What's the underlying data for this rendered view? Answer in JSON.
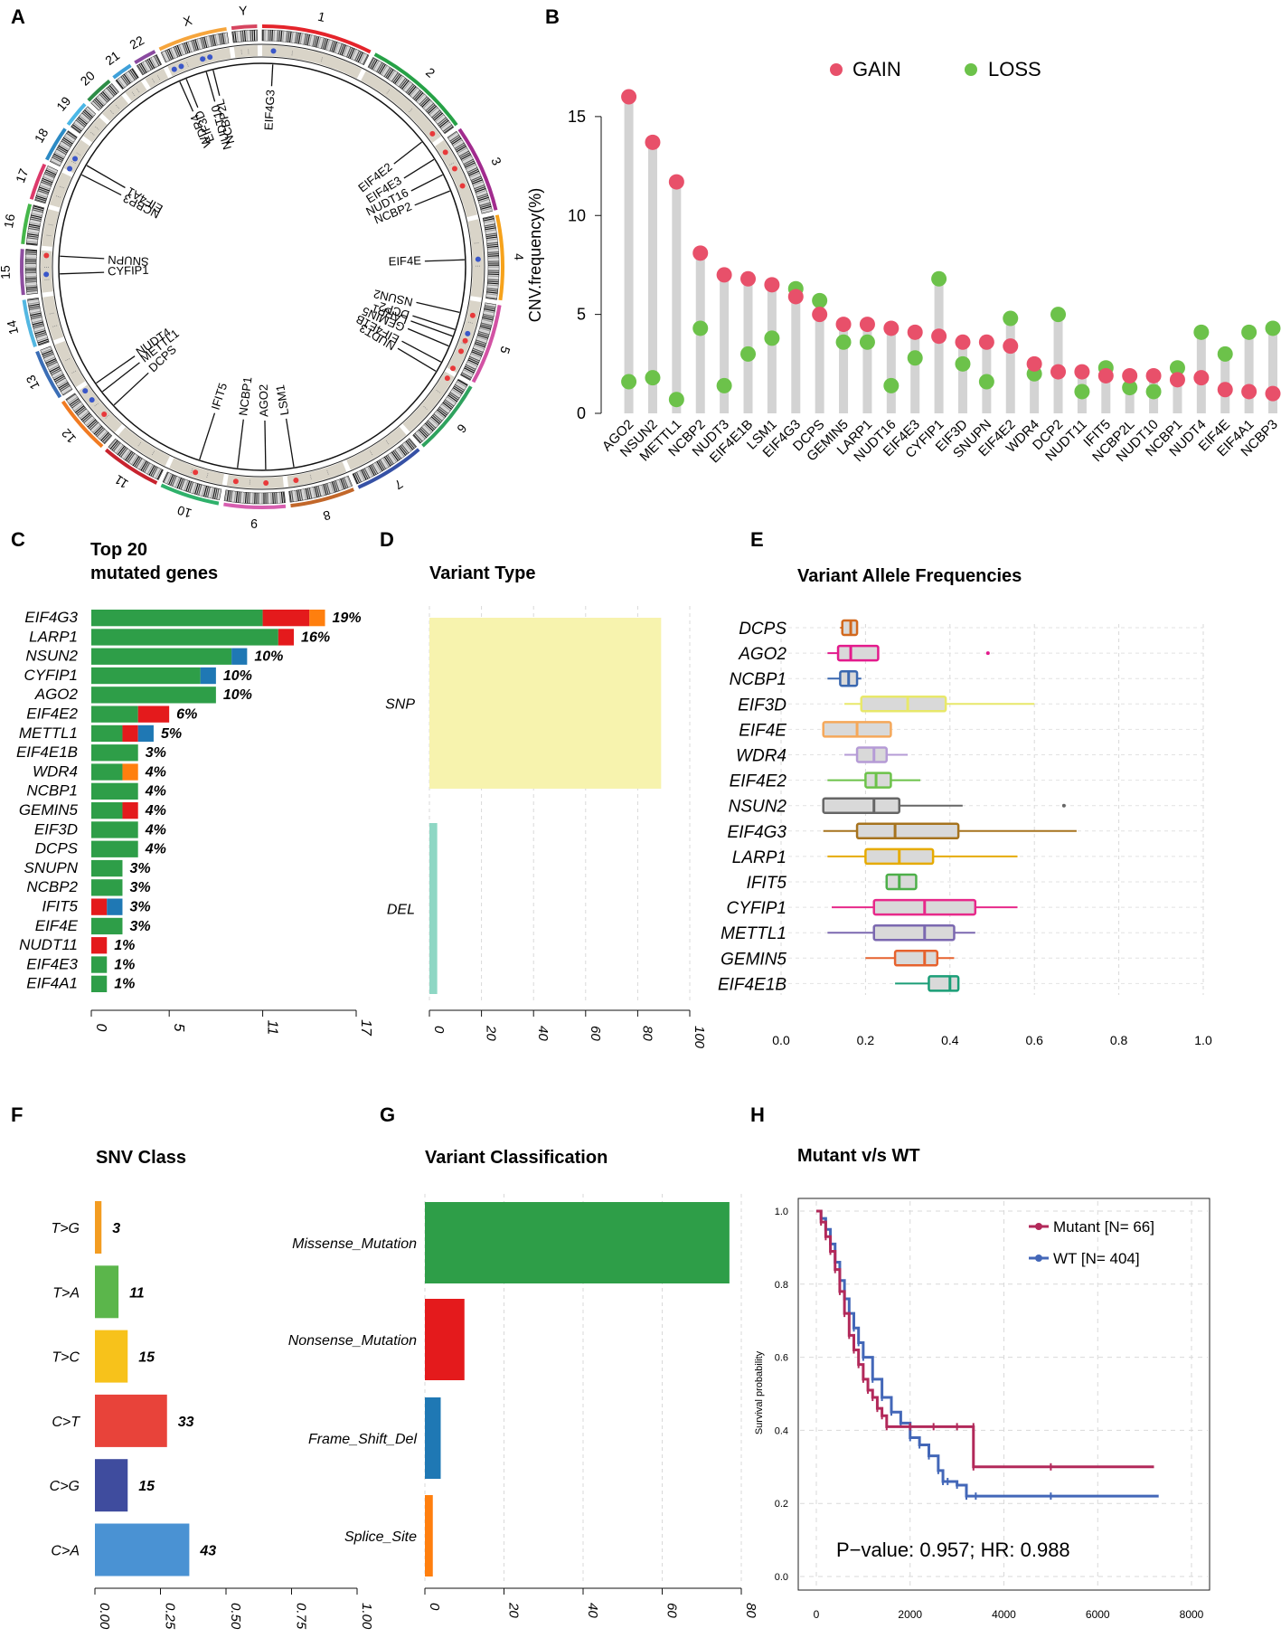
{
  "panels": {
    "A": {
      "letter": "A"
    },
    "B": {
      "letter": "B"
    },
    "C": {
      "letter": "C",
      "title_line1": "Top 20",
      "title_line2": "mutated genes"
    },
    "D": {
      "letter": "D",
      "title": "Variant Type"
    },
    "E": {
      "letter": "E",
      "title": "Variant Allele Frequencies"
    },
    "F": {
      "letter": "F",
      "title": "SNV Class"
    },
    "G": {
      "letter": "G",
      "title": "Variant Classification"
    },
    "H": {
      "letter": "H",
      "title": "Mutant v/s WT"
    }
  },
  "colors": {
    "gain": "#E8506A",
    "loss": "#6CC24A",
    "stick": "#D3D3D3",
    "missense": "#2E9E48",
    "nonsense": "#E41A1C",
    "frameshift": "#1F78B4",
    "splice": "#FF7F0E",
    "snp": "#F7F3AE",
    "del": "#8ED7C4",
    "mutant": "#B2295A",
    "wt": "#4367B8"
  },
  "chart_data": [
    {
      "panel": "A",
      "type": "circos",
      "chromosomes": [
        "1",
        "2",
        "3",
        "4",
        "5",
        "6",
        "7",
        "8",
        "9",
        "10",
        "11",
        "12",
        "13",
        "14",
        "15",
        "16",
        "17",
        "18",
        "19",
        "20",
        "21",
        "22",
        "X",
        "Y"
      ],
      "chromosome_colors": [
        "#E4242B",
        "#26A146",
        "#A12B8E",
        "#F6A21B",
        "#D252A4",
        "#2FA25E",
        "#3651A5",
        "#C2672A",
        "#D75EB0",
        "#2FB16B",
        "#C8232E",
        "#F17B22",
        "#3B6EB6",
        "#53B7E1",
        "#8E4EA0",
        "#45B64A",
        "#DC3A6B",
        "#2C8AC4",
        "#4BB7E5",
        "#2E8D47",
        "#3FA0D9",
        "#8A4AA0",
        "#F6A53C",
        "#D6455F"
      ],
      "genes": [
        {
          "name": "EIF4G3",
          "dot": "blue"
        },
        {
          "name": "NCBP2L",
          "dot": "blue"
        },
        {
          "name": "NUDT10",
          "dot": "blue"
        },
        {
          "name": "EIF3D",
          "dot": "blue"
        },
        {
          "name": "WDR4",
          "dot": "blue"
        },
        {
          "name": "EIF4E2",
          "dot": "red"
        },
        {
          "name": "EIF4E3",
          "dot": "red"
        },
        {
          "name": "NUDT16",
          "dot": "red"
        },
        {
          "name": "NCBP2",
          "dot": "red"
        },
        {
          "name": "EIF4E",
          "dot": "blue"
        },
        {
          "name": "NSUN2",
          "dot": "red"
        },
        {
          "name": "DCP2",
          "dot": "blue"
        },
        {
          "name": "LARP1",
          "dot": "red"
        },
        {
          "name": "GEMIN5",
          "dot": "red"
        },
        {
          "name": "EIF4E1B",
          "dot": "red"
        },
        {
          "name": "NUDT3",
          "dot": "red"
        },
        {
          "name": "LSM1",
          "dot": "red"
        },
        {
          "name": "AGO2",
          "dot": "red"
        },
        {
          "name": "NCBP1",
          "dot": "red"
        },
        {
          "name": "IFIT5",
          "dot": "red"
        },
        {
          "name": "DCPS",
          "dot": "red"
        },
        {
          "name": "METTL1",
          "dot": "blue"
        },
        {
          "name": "NUDT4",
          "dot": "blue"
        },
        {
          "name": "CYFIP1",
          "dot": "blue"
        },
        {
          "name": "SNUPN",
          "dot": "red"
        },
        {
          "name": "NCBP3",
          "dot": "blue"
        },
        {
          "name": "EIF4A1",
          "dot": "blue"
        }
      ]
    },
    {
      "panel": "B",
      "type": "lollipop",
      "ylabel": "CNV.frequency(%)",
      "ylim": [
        0,
        16
      ],
      "yticks": [
        0,
        5,
        10,
        15
      ],
      "legend": [
        "GAIN",
        "LOSS"
      ],
      "categories": [
        "AGO2",
        "NSUN2",
        "METTL1",
        "NCBP2",
        "NUDT3",
        "EIF4E1B",
        "LSM1",
        "EIF4G3",
        "DCPS",
        "GEMIN5",
        "LARP1",
        "NUDT16",
        "EIF4E3",
        "CYFIP1",
        "EIF3D",
        "SNUPN",
        "EIF4E2",
        "WDR4",
        "DCP2",
        "NUDT11",
        "IFIT5",
        "NCBP2L",
        "NUDT10",
        "NCBP1",
        "NUDT4",
        "EIF4E",
        "EIF4A1",
        "NCBP3"
      ],
      "series": [
        {
          "name": "GAIN",
          "values": [
            16.0,
            13.7,
            11.7,
            8.1,
            7.0,
            6.8,
            6.5,
            5.9,
            5.0,
            4.5,
            4.5,
            4.3,
            4.1,
            3.9,
            3.6,
            3.6,
            3.4,
            2.5,
            2.1,
            2.1,
            1.9,
            1.9,
            1.9,
            1.7,
            1.8,
            1.2,
            1.1,
            1.0
          ]
        },
        {
          "name": "LOSS",
          "values": [
            1.6,
            1.8,
            0.7,
            4.3,
            1.4,
            3.0,
            3.8,
            6.3,
            5.7,
            3.6,
            3.6,
            1.4,
            2.8,
            6.8,
            2.5,
            1.6,
            4.8,
            2.0,
            5.0,
            1.1,
            2.3,
            1.3,
            1.1,
            2.3,
            4.1,
            3.0,
            4.1,
            4.3
          ]
        }
      ]
    },
    {
      "panel": "C",
      "type": "bar",
      "orientation": "horizontal-stacked",
      "title": "Top 20 mutated genes",
      "xlim": [
        0,
        17
      ],
      "xticks": [
        0,
        5,
        11,
        17
      ],
      "categories": [
        "EIF4G3",
        "LARP1",
        "NSUN2",
        "CYFIP1",
        "AGO2",
        "EIF4E2",
        "METTL1",
        "EIF4E1B",
        "WDR4",
        "NCBP1",
        "GEMIN5",
        "EIF3D",
        "DCPS",
        "SNUPN",
        "NCBP2",
        "IFIT5",
        "EIF4E",
        "NUDT11",
        "EIF4E3",
        "EIF4A1"
      ],
      "labels": [
        "19%",
        "16%",
        "10%",
        "10%",
        "10%",
        "6%",
        "5%",
        "3%",
        "4%",
        "4%",
        "4%",
        "4%",
        "4%",
        "3%",
        "3%",
        "3%",
        "3%",
        "1%",
        "1%",
        "1%"
      ],
      "series": [
        {
          "name": "Missense_Mutation",
          "values": [
            11,
            12,
            9,
            7,
            8,
            3,
            2,
            3,
            2,
            3,
            2,
            3,
            3,
            2,
            2,
            0,
            2,
            0,
            1,
            1
          ]
        },
        {
          "name": "Nonsense_Mutation",
          "values": [
            3,
            1,
            0,
            0,
            0,
            2,
            1,
            0,
            0,
            0,
            1,
            0,
            0,
            0,
            0,
            1,
            0,
            1,
            0,
            0
          ]
        },
        {
          "name": "Frame_Shift_Del",
          "values": [
            0,
            0,
            1,
            1,
            0,
            0,
            1,
            0,
            0,
            0,
            0,
            0,
            0,
            0,
            0,
            1,
            0,
            0,
            0,
            0
          ]
        },
        {
          "name": "Splice_Site",
          "values": [
            1,
            0,
            0,
            0,
            0,
            0,
            0,
            0,
            1,
            0,
            0,
            0,
            0,
            0,
            0,
            0,
            0,
            0,
            0,
            0
          ]
        }
      ]
    },
    {
      "panel": "D",
      "type": "bar",
      "orientation": "horizontal",
      "title": "Variant Type",
      "categories": [
        "SNP",
        "DEL"
      ],
      "values": [
        89,
        3
      ],
      "xlim": [
        0,
        100
      ],
      "xticks": [
        0,
        20,
        40,
        60,
        80,
        100
      ]
    },
    {
      "panel": "E",
      "type": "box",
      "title": "Variant Allele Frequencies",
      "xlim": [
        0,
        1
      ],
      "xticks": [
        "0.0",
        "0.2",
        "0.4",
        "0.6",
        "0.8",
        "1.0"
      ],
      "categories": [
        "DCPS",
        "AGO2",
        "NCBP1",
        "EIF3D",
        "EIF4E",
        "WDR4",
        "EIF4E2",
        "NSUN2",
        "EIF4G3",
        "LARP1",
        "IFIT5",
        "CYFIP1",
        "METTL1",
        "GEMIN5",
        "EIF4E1B"
      ],
      "boxes": [
        {
          "min": 0.14,
          "q1": 0.145,
          "med": 0.165,
          "q3": 0.18,
          "max": 0.18,
          "color": "#D2691E",
          "out": []
        },
        {
          "min": 0.11,
          "q1": 0.135,
          "med": 0.165,
          "q3": 0.23,
          "max": 0.23,
          "color": "#E31A8C",
          "out": [
            0.49
          ]
        },
        {
          "min": 0.11,
          "q1": 0.14,
          "med": 0.16,
          "q3": 0.18,
          "max": 0.19,
          "color": "#3A68B0",
          "out": []
        },
        {
          "min": 0.15,
          "q1": 0.19,
          "med": 0.3,
          "q3": 0.39,
          "max": 0.6,
          "color": "#E8E86A",
          "out": []
        },
        {
          "min": 0.1,
          "q1": 0.1,
          "med": 0.18,
          "q3": 0.26,
          "max": 0.26,
          "color": "#F5A85A",
          "out": []
        },
        {
          "min": 0.15,
          "q1": 0.18,
          "med": 0.22,
          "q3": 0.25,
          "max": 0.3,
          "color": "#B59BD6",
          "out": []
        },
        {
          "min": 0.11,
          "q1": 0.2,
          "med": 0.225,
          "q3": 0.26,
          "max": 0.33,
          "color": "#6CC24A",
          "out": []
        },
        {
          "min": 0.1,
          "q1": 0.1,
          "med": 0.22,
          "q3": 0.28,
          "max": 0.43,
          "color": "#666666",
          "out": [
            0.67
          ]
        },
        {
          "min": 0.1,
          "q1": 0.18,
          "med": 0.27,
          "q3": 0.42,
          "max": 0.7,
          "color": "#A6731E",
          "out": []
        },
        {
          "min": 0.11,
          "q1": 0.2,
          "med": 0.28,
          "q3": 0.36,
          "max": 0.56,
          "color": "#E6AB02",
          "out": []
        },
        {
          "min": 0.25,
          "q1": 0.25,
          "med": 0.28,
          "q3": 0.32,
          "max": 0.32,
          "color": "#4DAF4A",
          "out": []
        },
        {
          "min": 0.12,
          "q1": 0.22,
          "med": 0.34,
          "q3": 0.46,
          "max": 0.56,
          "color": "#E7298A",
          "out": []
        },
        {
          "min": 0.11,
          "q1": 0.22,
          "med": 0.34,
          "q3": 0.41,
          "max": 0.46,
          "color": "#7B68B0",
          "out": []
        },
        {
          "min": 0.2,
          "q1": 0.27,
          "med": 0.34,
          "q3": 0.37,
          "max": 0.41,
          "color": "#E6622E",
          "out": []
        },
        {
          "min": 0.27,
          "q1": 0.35,
          "med": 0.4,
          "q3": 0.42,
          "max": 0.42,
          "color": "#1B9E77",
          "out": []
        }
      ]
    },
    {
      "panel": "F",
      "type": "bar",
      "orientation": "horizontal",
      "title": "SNV Class",
      "categories": [
        "T>G",
        "T>A",
        "T>C",
        "C>T",
        "C>G",
        "C>A"
      ],
      "values": [
        3,
        11,
        15,
        33,
        15,
        43
      ],
      "fractions": [
        0.025,
        0.09,
        0.125,
        0.275,
        0.125,
        0.36
      ],
      "colors": [
        "#F39C21",
        "#5BB64B",
        "#F7C21B",
        "#E8433A",
        "#3F4C9E",
        "#4A92D3"
      ],
      "xlim": [
        0,
        1
      ],
      "xticks": [
        "0.00",
        "0.25",
        "0.50",
        "0.75",
        "1.00"
      ]
    },
    {
      "panel": "G",
      "type": "bar",
      "orientation": "horizontal",
      "title": "Variant Classification",
      "categories": [
        "Missense_Mutation",
        "Nonsense_Mutation",
        "Frame_Shift_Del",
        "Splice_Site"
      ],
      "values": [
        77,
        10,
        4,
        2
      ],
      "xlim": [
        0,
        80
      ],
      "xticks": [
        0,
        20,
        40,
        60,
        80
      ]
    },
    {
      "panel": "H",
      "type": "line",
      "title": "Mutant v/s WT",
      "ylabel": "Survival probability",
      "xlim": [
        0,
        8000
      ],
      "ylim": [
        0,
        1
      ],
      "xticks": [
        0,
        2000,
        4000,
        6000,
        8000
      ],
      "yticks": [
        "0.0",
        "0.2",
        "0.4",
        "0.6",
        "0.8",
        "1.0"
      ],
      "legend": [
        "Mutant [N= 66]",
        "WT [N= 404]"
      ],
      "annotation": "P−value: 0.957; HR: 0.988",
      "series": [
        {
          "name": "Mutant",
          "x": [
            0,
            100,
            200,
            300,
            400,
            500,
            600,
            700,
            800,
            900,
            1000,
            1100,
            1200,
            1300,
            1400,
            1500,
            2000,
            2500,
            3000,
            3350,
            3350,
            5000,
            7200
          ],
          "y": [
            1.0,
            0.97,
            0.93,
            0.89,
            0.84,
            0.78,
            0.72,
            0.66,
            0.62,
            0.58,
            0.54,
            0.51,
            0.49,
            0.46,
            0.44,
            0.41,
            0.41,
            0.41,
            0.41,
            0.41,
            0.3,
            0.3,
            0.3
          ]
        },
        {
          "name": "WT",
          "x": [
            0,
            100,
            200,
            300,
            400,
            500,
            600,
            700,
            800,
            900,
            1000,
            1200,
            1400,
            1600,
            1800,
            2000,
            2200,
            2400,
            2600,
            2700,
            2800,
            3000,
            3200,
            3400,
            5000,
            7300
          ],
          "y": [
            1.0,
            0.98,
            0.95,
            0.91,
            0.86,
            0.81,
            0.76,
            0.72,
            0.68,
            0.64,
            0.6,
            0.54,
            0.49,
            0.45,
            0.42,
            0.38,
            0.36,
            0.33,
            0.29,
            0.26,
            0.26,
            0.25,
            0.22,
            0.22,
            0.22,
            0.22
          ]
        }
      ]
    }
  ]
}
